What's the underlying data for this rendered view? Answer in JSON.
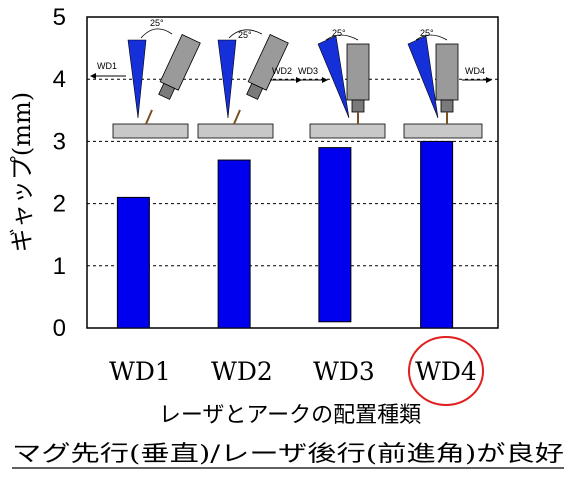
{
  "chart_data": {
    "type": "bar",
    "categories": [
      "WD1",
      "WD2",
      "WD3",
      "WD4"
    ],
    "values": [
      2.1,
      2.7,
      2.9,
      3.0
    ],
    "bar_bottoms": [
      0,
      0,
      0.1,
      0
    ],
    "title": "",
    "xlabel": "レーザとアークの配置種類",
    "ylabel": "ギャップ(mm)",
    "ylim": [
      0,
      5
    ],
    "yticks": [
      0,
      1,
      2,
      3,
      4,
      5
    ],
    "grid": "horizontal-dashed",
    "highlighted_category": "WD4",
    "bar_color": "#0000ee"
  },
  "caption": {
    "xlabel": "レーザとアークの配置種類",
    "conclusion": "マグ先行(垂直)/レーザ後行(前進角)が良好"
  },
  "insets": [
    {
      "label": "WD1",
      "angle": "25°"
    },
    {
      "label": "WD2",
      "angle": "25°"
    },
    {
      "label": "WD3",
      "angle": "25°"
    },
    {
      "label": "WD4",
      "angle": "25°"
    }
  ],
  "colors": {
    "bar": "#0000ee",
    "highlight_ring": "#e02020",
    "torch": "#9a9a9a",
    "plate": "#c8c8c8"
  }
}
